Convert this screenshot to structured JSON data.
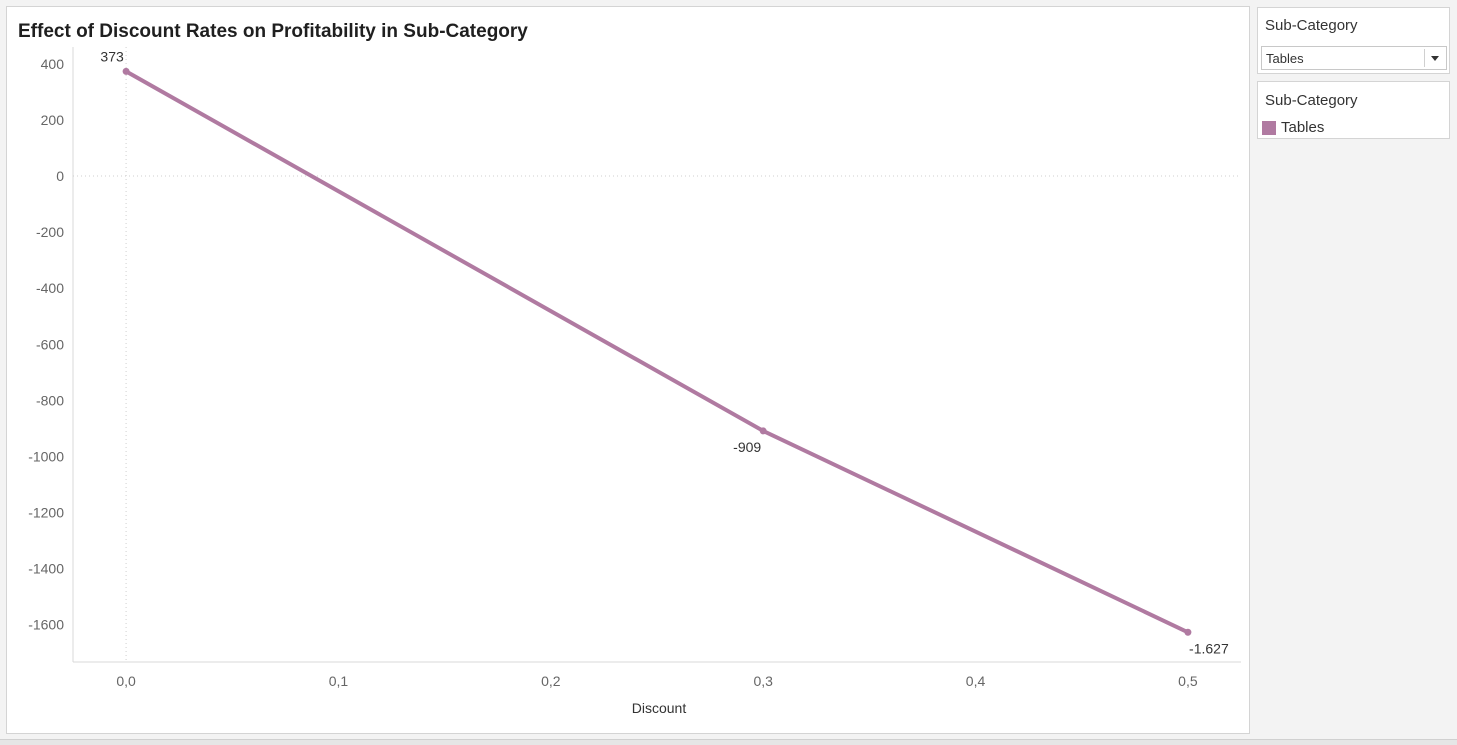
{
  "chart_data": {
    "type": "line",
    "title": "Effect of Discount Rates on Profitability in Sub-Category",
    "xlabel": "Discount",
    "ylabel": "",
    "x": [
      0.0,
      0.3,
      0.5
    ],
    "series": [
      {
        "name": "Tables",
        "values": [
          373,
          -909,
          -1627
        ],
        "labels": [
          "373",
          "-909",
          "-1.627"
        ],
        "color": "#b07aa1"
      }
    ],
    "xlim": [
      -0.025,
      0.525
    ],
    "ylim": [
      -1733,
      460
    ],
    "x_ticks": [
      0.0,
      0.1,
      0.2,
      0.3,
      0.4,
      0.5
    ],
    "x_tick_labels": [
      "0,0",
      "0,1",
      "0,2",
      "0,3",
      "0,4",
      "0,5"
    ],
    "y_ticks": [
      400,
      200,
      0,
      -200,
      -400,
      -600,
      -800,
      -1000,
      -1200,
      -1400,
      -1600
    ],
    "y_tick_labels": [
      "400",
      "200",
      "0",
      "-200",
      "-400",
      "-600",
      "-800",
      "-1000",
      "-1200",
      "-1400",
      "-1600"
    ],
    "reference_lines": {
      "x_zero": true,
      "y_zero": true
    },
    "grid": false
  },
  "filter": {
    "header": "Sub-Category",
    "selected_value": "Tables"
  },
  "legend": {
    "header": "Sub-Category",
    "items": [
      {
        "label": "Tables",
        "color": "#b07aa1"
      }
    ]
  },
  "colors": {
    "line": "#b07aa1",
    "axis": "#d9d9d9",
    "zero_line": "#cfcfcf"
  }
}
